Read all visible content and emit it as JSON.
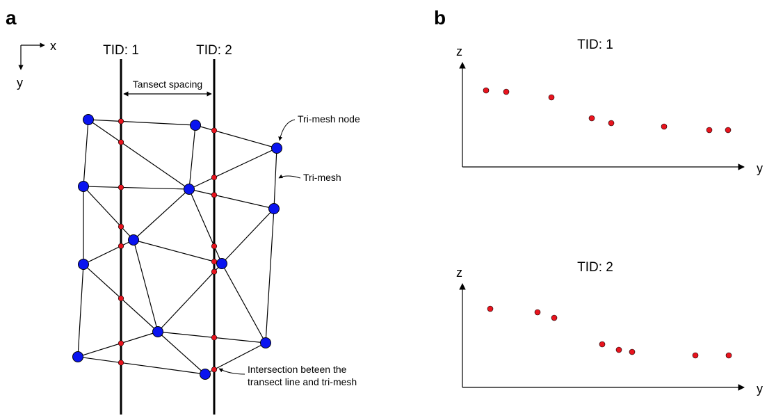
{
  "panel_a": {
    "label": "a",
    "axes": {
      "x": "x",
      "y": "y"
    },
    "transects": [
      "TID: 1",
      "TID: 2"
    ],
    "annotations": {
      "spacing": "Tansect spacing",
      "node": "Tri-mesh node",
      "mesh": "Tri-mesh",
      "intersection_line1": "Intersection beteen the",
      "intersection_line2": "transect line and tri-mesh"
    },
    "colors": {
      "node": "#0a14f0",
      "intersection": "#e8141e",
      "line": "#000000"
    }
  },
  "panel_b": {
    "label": "b",
    "plots": [
      {
        "title": "TID: 1",
        "xlabel": "y",
        "ylabel": "z"
      },
      {
        "title": "TID: 2",
        "xlabel": "y",
        "ylabel": "z"
      }
    ]
  }
}
